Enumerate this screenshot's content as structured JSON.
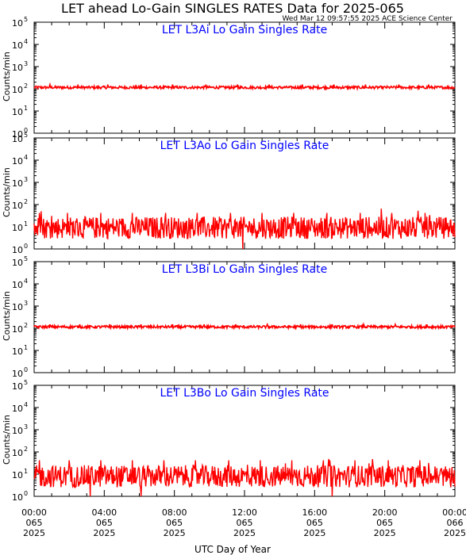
{
  "title": "LET ahead Lo-Gain SINGLES RATES Data for 2025-065",
  "timestamp": "Wed Mar 12 09:57:55 2025 ACE Science Center",
  "xlabel": "UTC Day of Year",
  "colors": {
    "trace": "#ff0000",
    "panel_title": "#0000ff",
    "axes": "#000000"
  },
  "x_ticks": [
    {
      "time": "00:00",
      "doy": "065",
      "year": "2025"
    },
    {
      "time": "04:00",
      "doy": "065",
      "year": "2025"
    },
    {
      "time": "08:00",
      "doy": "065",
      "year": "2025"
    },
    {
      "time": "12:00",
      "doy": "065",
      "year": "2025"
    },
    {
      "time": "16:00",
      "doy": "065",
      "year": "2025"
    },
    {
      "time": "20:00",
      "doy": "065",
      "year": "2025"
    },
    {
      "time": "00:00",
      "doy": "066",
      "year": "2025"
    }
  ],
  "y_ticks": [
    {
      "base": "10",
      "exp": "0"
    },
    {
      "base": "10",
      "exp": "1"
    },
    {
      "base": "10",
      "exp": "2"
    },
    {
      "base": "10",
      "exp": "3"
    },
    {
      "base": "10",
      "exp": "4"
    },
    {
      "base": "10",
      "exp": "5"
    }
  ],
  "chart_data": [
    {
      "type": "line",
      "title": "LET L3Ai Lo Gain Singles Rate",
      "ylabel": "Counts/min",
      "yscale": "log",
      "ylim": [
        1,
        100000
      ],
      "xlim_hours": [
        0,
        24
      ],
      "baseline": 115,
      "noise": 0.12,
      "spikes": [
        0.9,
        2.5,
        4.2,
        6.1,
        7.9,
        9.8,
        11.6,
        13.4,
        15.3,
        17.1,
        18.9,
        20.8,
        22.5
      ],
      "spike_value": 155,
      "dips": [],
      "dip_value": 1
    },
    {
      "type": "line",
      "title": "LET L3Ao Lo Gain Singles Rate",
      "ylabel": "Counts/min",
      "yscale": "log",
      "ylim": [
        1,
        100000
      ],
      "xlim_hours": [
        0,
        24
      ],
      "baseline": 9,
      "noise": 1.0,
      "spikes": [
        0.3,
        1.9,
        3.8,
        5.6,
        7.5,
        9.3,
        11.2,
        13.0,
        14.8,
        16.7,
        18.6,
        20.4,
        22.3
      ],
      "spike_value": 42,
      "dips": [
        11.9
      ],
      "dip_value": 1
    },
    {
      "type": "line",
      "title": "LET L3Bi Lo Gain Singles Rate",
      "ylabel": "Counts/min",
      "yscale": "log",
      "ylim": [
        1,
        100000
      ],
      "xlim_hours": [
        0,
        24
      ],
      "baseline": 115,
      "noise": 0.12,
      "spikes": [
        0.9,
        2.6,
        4.3,
        6.1,
        7.9,
        9.7,
        11.5,
        13.3,
        15.2,
        17.0,
        18.8,
        20.6,
        22.4
      ],
      "spike_value": 150,
      "dips": [],
      "dip_value": 1
    },
    {
      "type": "line",
      "title": "LET L3Bo Lo Gain Singles Rate",
      "ylabel": "Counts/min",
      "yscale": "log",
      "ylim": [
        1,
        100000
      ],
      "xlim_hours": [
        0,
        24
      ],
      "baseline": 8,
      "noise": 1.0,
      "spikes": [
        0.3,
        2.0,
        3.8,
        5.6,
        7.4,
        9.2,
        11.1,
        12.9,
        14.7,
        16.5,
        18.3,
        20.2,
        22.0
      ],
      "spike_value": 42,
      "dips": [
        3.2,
        6.1,
        17.0
      ],
      "dip_value": 1
    }
  ]
}
